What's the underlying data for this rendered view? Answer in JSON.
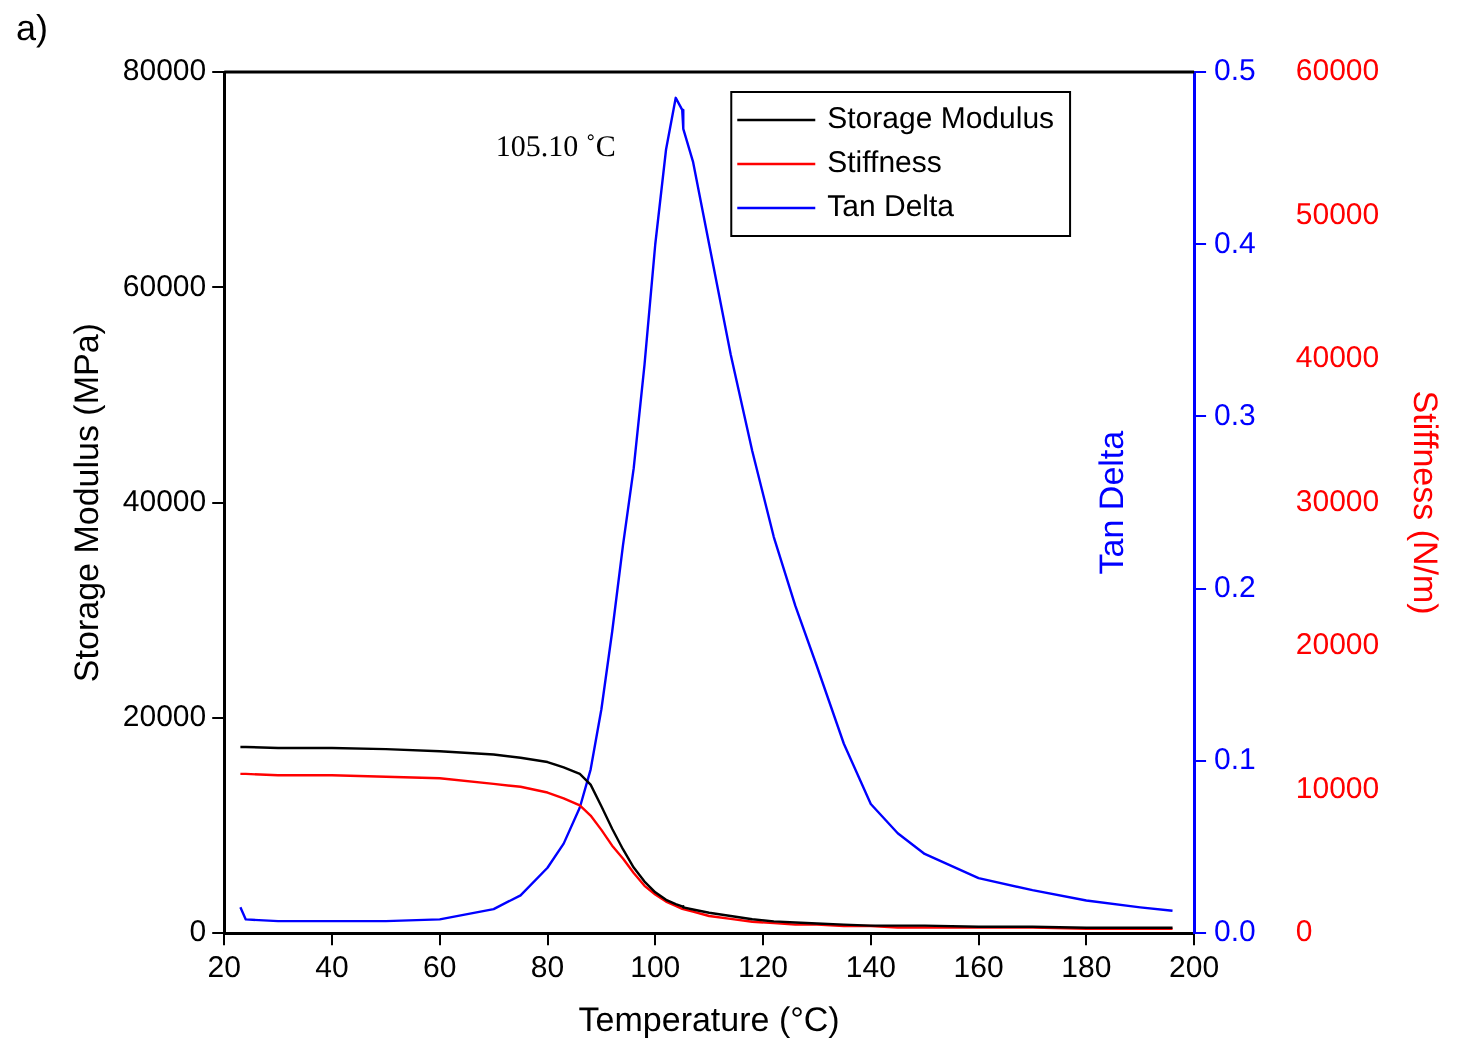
{
  "chart_data": {
    "type": "line",
    "xlabel": "Temperature (°C)",
    "ylabel": "Storage Modulus (MPa)",
    "y2label": "Tan Delta",
    "y3label": "Stiffness (N/m)",
    "annotations": [
      "a)",
      "105.10 ˚C"
    ],
    "x": [
      23,
      24,
      30,
      40,
      50,
      60,
      70,
      75,
      80,
      83,
      86,
      88,
      90,
      92,
      94,
      96,
      98,
      100,
      102,
      103.8,
      105,
      105.2,
      107,
      110,
      114,
      118,
      122,
      126,
      130,
      135,
      140,
      145,
      150,
      160,
      170,
      180,
      190,
      196
    ],
    "series": [
      {
        "name": "Storage Modulus",
        "color": "#000000",
        "axis": "y",
        "values": [
          17300,
          17300,
          17200,
          17200,
          17100,
          16900,
          16600,
          16300,
          15900,
          15400,
          14800,
          13800,
          11800,
          9700,
          7800,
          6100,
          4800,
          3800,
          3100,
          2700,
          2500,
          2400,
          2200,
          1900,
          1600,
          1300,
          1100,
          1000,
          900,
          800,
          700,
          700,
          700,
          600,
          600,
          500,
          500,
          500
        ]
      },
      {
        "name": "Stiffness",
        "color": "#ff0000",
        "axis": "y3",
        "values": [
          11100,
          11100,
          11000,
          11000,
          10900,
          10800,
          10400,
          10200,
          9800,
          9400,
          8900,
          8200,
          7200,
          6100,
          5200,
          4200,
          3300,
          2700,
          2200,
          1900,
          1700,
          1700,
          1500,
          1200,
          1000,
          800,
          700,
          600,
          600,
          500,
          500,
          400,
          400,
          400,
          400,
          300,
          300,
          300
        ]
      },
      {
        "name": "Tan Delta",
        "color": "#0000ff",
        "axis": "y2",
        "values": [
          0.015,
          0.008,
          0.007,
          0.007,
          0.007,
          0.008,
          0.014,
          0.022,
          0.038,
          0.052,
          0.073,
          0.095,
          0.13,
          0.175,
          0.225,
          0.27,
          0.33,
          0.4,
          0.455,
          0.485,
          0.478,
          0.467,
          0.448,
          0.4,
          0.336,
          0.28,
          0.23,
          0.19,
          0.155,
          0.11,
          0.075,
          0.058,
          0.046,
          0.032,
          0.025,
          0.019,
          0.015,
          0.013
        ]
      }
    ],
    "xlim": [
      20,
      200
    ],
    "xticks": [
      20,
      40,
      60,
      80,
      100,
      120,
      140,
      160,
      180,
      200
    ],
    "ylim": [
      0,
      80000
    ],
    "yticks": [
      0,
      20000,
      40000,
      60000,
      80000
    ],
    "y2lim": [
      0,
      0.5
    ],
    "y2ticks": [
      {
        "value": 0,
        "label": "0.0"
      },
      0.1,
      0.2,
      0.3,
      0.4,
      0.5
    ],
    "y3lim": [
      0,
      60000
    ],
    "y3ticks": [
      0,
      10000,
      20000,
      30000,
      40000,
      50000,
      60000
    ],
    "grid": false,
    "legend": "top right",
    "marker": "none",
    "line_style": "solid"
  }
}
